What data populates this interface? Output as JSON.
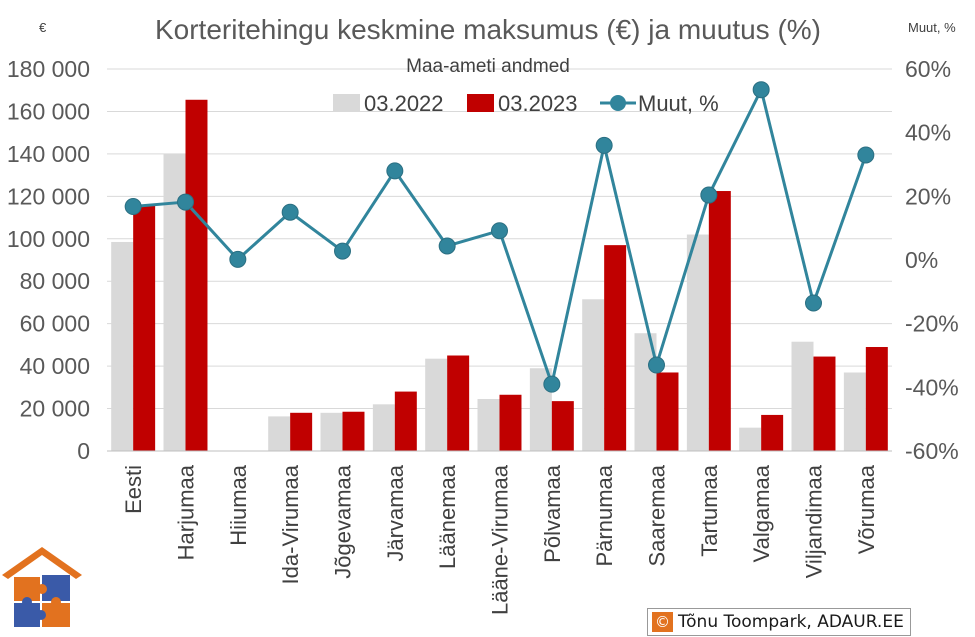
{
  "chart_data": {
    "type": "bar+line",
    "title": "Korteritehingu keskmine maksumus (€) ja muutus (%)",
    "subtitle": "Maa-ameti andmed",
    "left_unit": "€",
    "right_unit": "Muut, %",
    "categories": [
      "Eesti",
      "Harjumaa",
      "Hiiumaa",
      "Ida-Virumaa",
      "Jõgevamaa",
      "Järvamaa",
      "Läänemaa",
      "Lääne-Virumaa",
      "Põlvamaa",
      "Pärnumaa",
      "Saaremaa",
      "Tartumaa",
      "Valgamaa",
      "Viljandimaa",
      "Võrumaa"
    ],
    "series": [
      {
        "name": "03.2022",
        "axis": "left",
        "type": "bar",
        "color": "#d9d9d9",
        "values": [
          98500,
          140000,
          null,
          16300,
          18000,
          22000,
          43500,
          24500,
          39000,
          71500,
          55500,
          102000,
          11000,
          51500,
          37000
        ]
      },
      {
        "name": "03.2023",
        "axis": "left",
        "type": "bar",
        "color": "#c00000",
        "values": [
          115500,
          165500,
          null,
          18000,
          18500,
          28000,
          45000,
          26500,
          23500,
          97000,
          37000,
          122500,
          17000,
          44500,
          49000
        ]
      },
      {
        "name": "Muut, %",
        "axis": "right",
        "type": "line",
        "color": "#31859c",
        "values": [
          16.8,
          18.2,
          0.2,
          15.0,
          2.8,
          28.0,
          4.4,
          9.2,
          -39.0,
          36.0,
          -33.0,
          20.4,
          53.5,
          -13.5,
          33.0
        ]
      }
    ],
    "y_left": {
      "min": 0,
      "max": 180000,
      "step": 20000,
      "tick_labels": [
        "0",
        "20 000",
        "40 000",
        "60 000",
        "80 000",
        "100 000",
        "120 000",
        "140 000",
        "160 000",
        "180 000"
      ]
    },
    "y_right": {
      "min": -60,
      "max": 60,
      "step": 20,
      "tick_labels": [
        "-60%",
        "-40%",
        "-20%",
        "0%",
        "20%",
        "40%",
        "60%"
      ]
    },
    "legend_position": "top-center",
    "grid": true
  },
  "credit": {
    "symbol": "©",
    "text": "Tõnu Toompark, ADAUR.EE"
  },
  "logo": {
    "icon": "house-puzzle-logo"
  }
}
